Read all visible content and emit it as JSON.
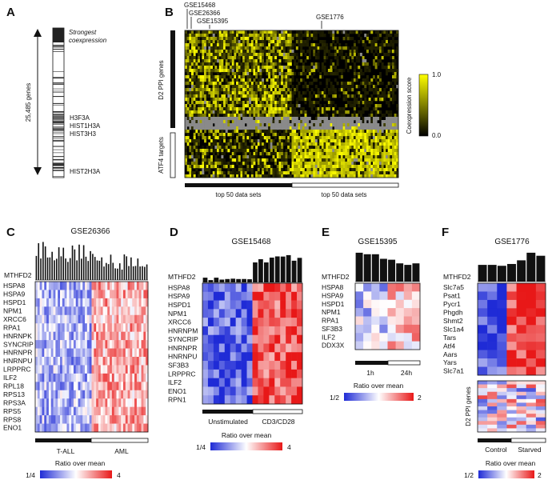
{
  "panel_a": {
    "label": "A",
    "genes_count": "25,485 genes",
    "annotation": [
      "Strongest",
      "coexpression"
    ],
    "genes_mid": [
      "H3F3A",
      "HIST1H3A",
      "HIST3H3"
    ],
    "gene_bottom": "HIST2H3A"
  },
  "panel_b": {
    "label": "B",
    "datasets": [
      "GSE15468",
      "GSE26366",
      "GSE15395",
      "GSE1776"
    ],
    "row_label_top": "D2 PPI genes",
    "row_label_bottom": "ATF4 targets",
    "bottom_labels": [
      "top 50 data sets",
      "top 50 data sets"
    ],
    "colorbar_title": "Coexpression score",
    "colorbar_max": "1.0",
    "colorbar_min": "0.0",
    "colors": {
      "high": "#ffff00",
      "low": "#000000",
      "missing": "#8a8a8a"
    }
  },
  "panel_c": {
    "label": "C",
    "title": "GSE26366",
    "bar_label": "MTHFD2",
    "genes": [
      "HSPA8",
      "HSPA9",
      "HSPD1",
      "NPM1",
      "XRCC6",
      "RPA1",
      "HNRNPK",
      "SYNCRIP",
      "HNRNPR",
      "HNRNPU",
      "LRPPRC",
      "ILF2",
      "RPL18",
      "RPS13",
      "RPS3A",
      "RPS5",
      "RPS8",
      "ENO1"
    ],
    "groups": [
      "T-ALL",
      "AML"
    ],
    "legend_title": "Ratio over mean",
    "legend_min": "1/4",
    "legend_max": "4"
  },
  "panel_d": {
    "label": "D",
    "title": "GSE15468",
    "bar_label": "MTHFD2",
    "genes": [
      "HSPA8",
      "HSPA9",
      "HSPD1",
      "NPM1",
      "XRCC6",
      "HNRNPM",
      "SYNCRIP",
      "HNRNPR",
      "HNRNPU",
      "SF3B3",
      "LRPPRC",
      "ILF2",
      "ENO1",
      "RPN1"
    ],
    "groups": [
      "Unstimulated",
      "CD3/CD28"
    ],
    "legend_title": "Ratio over mean",
    "legend_min": "1/4",
    "legend_max": "4"
  },
  "panel_e": {
    "label": "E",
    "title": "GSE15395",
    "bar_label": "MTHFD2",
    "genes": [
      "HSPA8",
      "HSPA9",
      "HSPD1",
      "NPM1",
      "RPA1",
      "SF3B3",
      "ILF2",
      "DDX3X"
    ],
    "groups": [
      "1h",
      "24h"
    ],
    "legend_title": "Ratio over mean",
    "legend_min": "1/2",
    "legend_max": "2"
  },
  "panel_f": {
    "label": "F",
    "title": "GSE1776",
    "bar_label": "MTHFD2",
    "genes": [
      "Slc7a5",
      "Psat1",
      "Pycr1",
      "Phgdh",
      "Shmt2",
      "Slc1a4",
      "Tars",
      "Atf4",
      "Aars",
      "Yars",
      "Slc7a1"
    ],
    "lower_label": "D2 PPI genes",
    "groups": [
      "Control",
      "Starved"
    ],
    "legend_title": "Ratio over mean",
    "legend_min": "1/2",
    "legend_max": "2"
  }
}
